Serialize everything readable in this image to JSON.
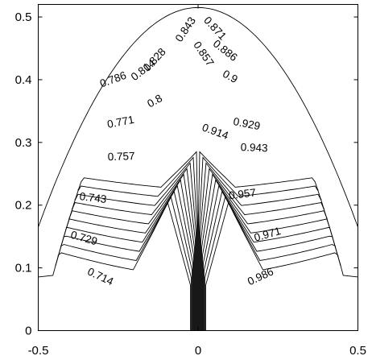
{
  "chart_data": {
    "type": "contour",
    "title": "",
    "xlabel": "",
    "ylabel": "",
    "xlim": [
      -0.5,
      0.5
    ],
    "ylim": [
      0,
      0.52
    ],
    "grid": false,
    "x_ticks": [
      {
        "value": -0.5,
        "label": "-0.5"
      },
      {
        "value": 0,
        "label": "0"
      },
      {
        "value": 0.5,
        "label": "0.5"
      }
    ],
    "y_ticks": [
      {
        "value": 0,
        "label": "0"
      },
      {
        "value": 0.1,
        "label": "0.1"
      },
      {
        "value": 0.2,
        "label": "0.2"
      },
      {
        "value": 0.3,
        "label": "0.3"
      },
      {
        "value": 0.4,
        "label": "0.4"
      },
      {
        "value": 0.5,
        "label": "0.5"
      }
    ],
    "contour_levels": [
      {
        "level": "0.714",
        "label_x": -0.31,
        "label_y": 0.081
      },
      {
        "level": "0.729",
        "label_x": -0.36,
        "label_y": 0.142
      },
      {
        "level": "0.743",
        "label_x": -0.33,
        "label_y": 0.206
      },
      {
        "level": "0.757",
        "label_x": -0.24,
        "label_y": 0.272
      },
      {
        "level": "0.771",
        "label_x": -0.24,
        "label_y": 0.327
      },
      {
        "level": "0.786",
        "label_x": -0.262,
        "label_y": 0.395
      },
      {
        "level": "0.8",
        "label_x": -0.13,
        "label_y": 0.361
      },
      {
        "level": "0.814",
        "label_x": -0.165,
        "label_y": 0.411
      },
      {
        "level": "0.828",
        "label_x": -0.128,
        "label_y": 0.428
      },
      {
        "level": "0.843",
        "label_x": -0.03,
        "label_y": 0.477
      },
      {
        "level": "0.857",
        "label_x": 0.008,
        "label_y": 0.438
      },
      {
        "level": "0.871",
        "label_x": 0.045,
        "label_y": 0.478
      },
      {
        "level": "0.886",
        "label_x": 0.078,
        "label_y": 0.442
      },
      {
        "level": "0.9",
        "label_x": 0.095,
        "label_y": 0.4
      },
      {
        "level": "0.914",
        "label_x": 0.05,
        "label_y": 0.312
      },
      {
        "level": "0.929",
        "label_x": 0.15,
        "label_y": 0.324
      },
      {
        "level": "0.943",
        "label_x": 0.175,
        "label_y": 0.286
      },
      {
        "level": "0.957",
        "label_x": 0.14,
        "label_y": 0.212
      },
      {
        "level": "0.971",
        "label_x": 0.22,
        "label_y": 0.148
      },
      {
        "level": "0.986",
        "label_x": 0.2,
        "label_y": 0.081
      }
    ]
  }
}
